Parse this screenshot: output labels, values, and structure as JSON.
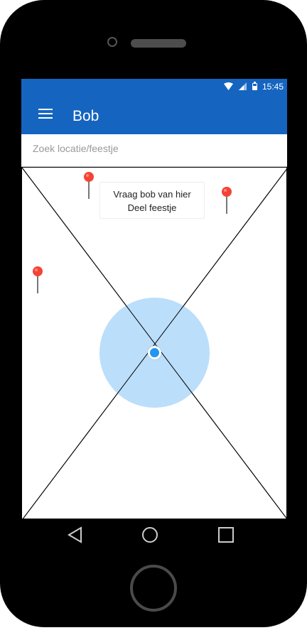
{
  "statusbar": {
    "time": "15:45",
    "icons": [
      "wifi-icon",
      "signal-icon",
      "battery-icon"
    ]
  },
  "appbar": {
    "title": "Bob",
    "menu_icon": "menu-icon"
  },
  "search": {
    "placeholder": "Zoek locatie/feestje",
    "value": ""
  },
  "map": {
    "popup": {
      "line1": "Vraag bob van hier",
      "line2": "Deel feestje"
    },
    "pins": [
      "map-pin-icon",
      "map-pin-icon",
      "map-pin-icon"
    ],
    "colors": {
      "pin": "#f44336",
      "radius": "#bbdefb",
      "location": "#2196f3"
    }
  },
  "navbar": {
    "buttons": [
      "back-icon",
      "home-icon",
      "recents-icon"
    ]
  },
  "colors": {
    "primary": "#1565c0"
  }
}
